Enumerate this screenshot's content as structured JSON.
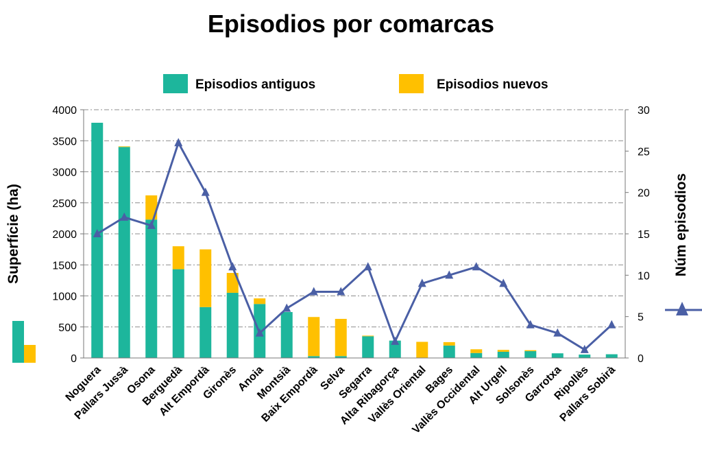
{
  "chart_data": {
    "type": "bar",
    "title": "Episodios por comarcas",
    "categories": [
      "Noguera",
      "Pallars Jussà",
      "Osona",
      "Berguedà",
      "Alt Empordà",
      "Gironès",
      "Anoia",
      "Montsià",
      "Baix Empordà",
      "Selva",
      "Segarra",
      "Alta Ribagorça",
      "Vallès Oriental",
      "Bages",
      "Vallès Occidental",
      "Alt Urgell",
      "Solsonès",
      "Garrotxa",
      "Ripollès",
      "Pallars Sobirà"
    ],
    "series": [
      {
        "name": "Episodios antiguos",
        "type": "bar",
        "axis": "left",
        "color": "#1DB69C",
        "values": [
          3790,
          3400,
          2230,
          1430,
          820,
          1050,
          870,
          740,
          30,
          30,
          350,
          280,
          0,
          200,
          80,
          100,
          110,
          75,
          55,
          60
        ]
      },
      {
        "name": "Episodios nuevos",
        "type": "bar",
        "axis": "left",
        "color": "#FFC000",
        "values": [
          0,
          10,
          390,
          370,
          930,
          320,
          90,
          0,
          630,
          600,
          10,
          0,
          260,
          55,
          60,
          30,
          15,
          0,
          0,
          0
        ]
      },
      {
        "name": "Núm episodios",
        "type": "line",
        "axis": "right",
        "color": "#4A5FA5",
        "values": [
          15,
          17,
          16,
          26,
          20,
          11,
          3,
          6,
          8,
          8,
          11,
          2,
          9,
          10,
          11,
          9,
          4,
          3,
          1,
          4
        ]
      }
    ],
    "ylabel": "Superfície (ha)",
    "ylim": [
      0,
      4000
    ],
    "yticks": [
      "0",
      "500",
      "1000",
      "1500",
      "2000",
      "2500",
      "3000",
      "3500",
      "4000"
    ],
    "y2label": "Núm episodios",
    "y2lim": [
      0,
      30
    ],
    "y2ticks": [
      "0",
      "5",
      "10",
      "15",
      "20",
      "25",
      "30"
    ],
    "grid": true,
    "legend": "top"
  }
}
